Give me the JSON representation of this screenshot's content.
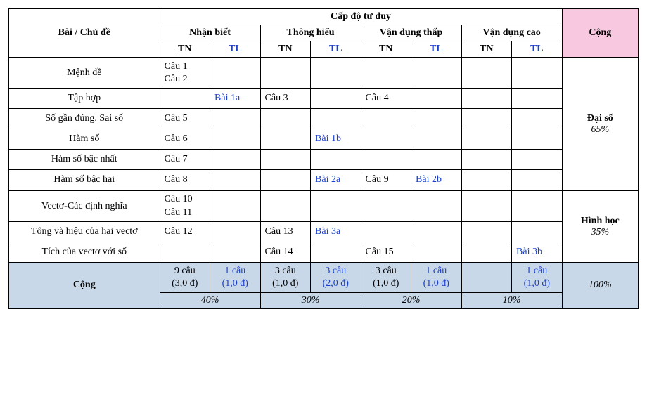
{
  "header": {
    "topic_header": "Bài / Chủ đề",
    "thinking_level": "Cấp độ tư duy",
    "sum": "Cộng",
    "levels": [
      "Nhận biết",
      "Thông hiểu",
      "Vận dụng thấp",
      "Vận dụng cao"
    ],
    "tn": "TN",
    "tl": "TL"
  },
  "sections": [
    {
      "label": "Đại số",
      "pct": "65%"
    },
    {
      "label": "Hình học",
      "pct": "35%"
    }
  ],
  "rows": [
    {
      "topic": "Mệnh đề",
      "c": [
        "Câu 1\nCâu 2",
        "",
        "",
        "",
        "",
        "",
        "",
        ""
      ]
    },
    {
      "topic": "Tập hợp",
      "c": [
        "",
        "Bài 1a",
        "Câu 3",
        "",
        "Câu 4",
        "",
        "",
        ""
      ]
    },
    {
      "topic": "Số gần đúng. Sai số",
      "c": [
        "Câu 5",
        "",
        "",
        "",
        "",
        "",
        "",
        ""
      ]
    },
    {
      "topic": "Hàm số",
      "c": [
        "Câu 6",
        "",
        "",
        "Bài 1b",
        "",
        "",
        "",
        ""
      ]
    },
    {
      "topic": "Hàm số bậc nhất",
      "c": [
        "Câu 7",
        "",
        "",
        "",
        "",
        "",
        "",
        ""
      ]
    },
    {
      "topic": "Hàm số bậc hai",
      "c": [
        "Câu 8",
        "",
        "",
        "Bài 2a",
        "Câu 9",
        "Bài 2b",
        "",
        ""
      ]
    },
    {
      "topic": "Vectơ-Các định nghĩa",
      "c": [
        "Câu 10\nCâu 11",
        "",
        "",
        "",
        "",
        "",
        "",
        ""
      ]
    },
    {
      "topic": "Tổng và hiệu của hai vectơ",
      "c": [
        "Câu 12",
        "",
        "Câu 13",
        "Bài 3a",
        "",
        "",
        "",
        ""
      ]
    },
    {
      "topic": "Tích của vectơ với số",
      "c": [
        "",
        "",
        "Câu 14",
        "",
        "Câu 15",
        "",
        "",
        "Bài 3b"
      ]
    }
  ],
  "totals": {
    "label": "Cộng",
    "cells": [
      "9 câu\n(3,0 đ)",
      "1 câu\n(1,0 đ)",
      "3 câu\n(1,0 đ)",
      "3 câu\n(2,0 đ)",
      "3 câu\n(1,0 đ)",
      "1 câu\n(1,0 đ)",
      "",
      "1 câu\n(1,0 đ)"
    ],
    "group_pcts": [
      "40%",
      "30%",
      "20%",
      "10%"
    ],
    "grand": "100%"
  },
  "style": {
    "tl_indices": [
      1,
      3,
      5,
      7
    ],
    "pink": "#f7c8e0",
    "blue": "#c9d8e8",
    "tl_color": "#1a3fcc"
  }
}
